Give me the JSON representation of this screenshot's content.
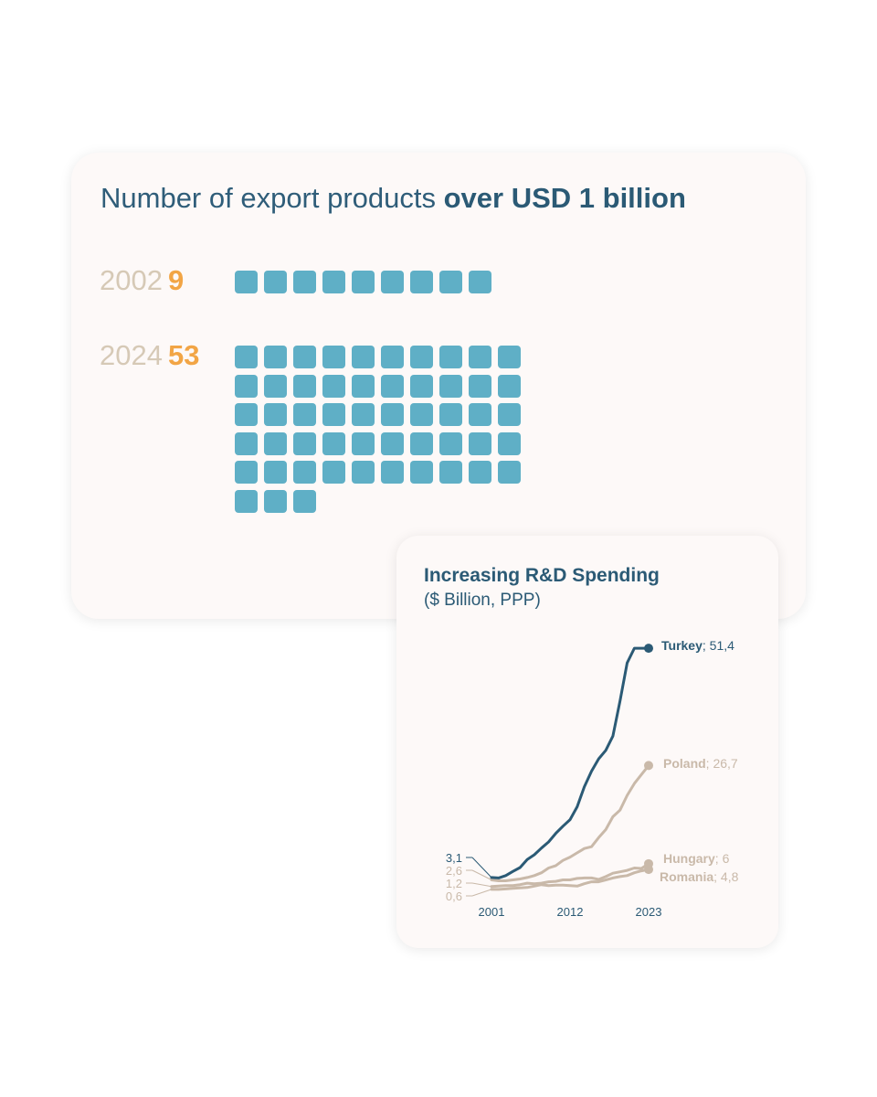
{
  "chart_data": [
    {
      "type": "pictogram",
      "title_regular": "Number of export products ",
      "title_bold": "over USD 1 billion",
      "rows": [
        {
          "year": "2002",
          "value": 9
        },
        {
          "year": "2024",
          "value": 53
        }
      ],
      "colors": {
        "square": "#5fafc6",
        "year": "#d6c9b6",
        "value": "#f2a545",
        "title": "#2f5d79"
      }
    },
    {
      "type": "line",
      "title": "Increasing R&D Spending",
      "subtitle": "($ Billion, PPP)",
      "x_ticks": [
        "2001",
        "2012",
        "2023"
      ],
      "xlim": [
        2001,
        2023
      ],
      "ylim": [
        0,
        52
      ],
      "start_labels": [
        "3,1",
        "2,6",
        "1,2",
        "0,6"
      ],
      "series": [
        {
          "name": "Turkey",
          "end_label": "51,4",
          "color": "#2b5a75",
          "x": [
            2001,
            2002,
            2003,
            2004,
            2005,
            2006,
            2007,
            2008,
            2009,
            2010,
            2011,
            2012,
            2013,
            2014,
            2015,
            2016,
            2017,
            2018,
            2019,
            2020,
            2021,
            2022,
            2023
          ],
          "y": [
            3.1,
            3.0,
            3.5,
            4.4,
            5.2,
            6.9,
            7.9,
            9.3,
            10.6,
            12.4,
            13.9,
            15.3,
            18.0,
            22.2,
            25.5,
            28.1,
            29.9,
            32.9,
            40.3,
            48.3,
            51.4,
            51.4,
            51.4
          ]
        },
        {
          "name": "Poland",
          "end_label": "26,7",
          "color": "#c9b9a9",
          "x": [
            2001,
            2002,
            2003,
            2004,
            2005,
            2006,
            2007,
            2008,
            2009,
            2010,
            2011,
            2012,
            2013,
            2014,
            2015,
            2016,
            2017,
            2018,
            2019,
            2020,
            2021,
            2022,
            2023
          ],
          "y": [
            2.6,
            2.4,
            2.4,
            2.6,
            2.8,
            3.1,
            3.5,
            4.1,
            5.1,
            5.6,
            6.7,
            7.4,
            8.3,
            9.2,
            9.6,
            11.5,
            13.2,
            15.9,
            17.3,
            20.4,
            22.9,
            24.8,
            26.7
          ]
        },
        {
          "name": "Hungary",
          "end_label": "6",
          "color": "#c9b9a9",
          "x": [
            2001,
            2002,
            2003,
            2004,
            2005,
            2006,
            2007,
            2008,
            2009,
            2010,
            2011,
            2012,
            2013,
            2014,
            2015,
            2016,
            2017,
            2018,
            2019,
            2020,
            2021,
            2022,
            2023
          ],
          "y": [
            1.2,
            1.3,
            1.4,
            1.4,
            1.6,
            1.9,
            1.8,
            1.9,
            2.2,
            2.3,
            2.6,
            2.6,
            2.9,
            3.0,
            3.0,
            2.7,
            3.3,
            4.0,
            4.3,
            4.6,
            5.1,
            5.0,
            6.0
          ]
        },
        {
          "name": "Romania",
          "end_label": "4,8",
          "color": "#c9b9a9",
          "x": [
            2001,
            2002,
            2003,
            2004,
            2005,
            2006,
            2007,
            2008,
            2009,
            2010,
            2011,
            2012,
            2013,
            2014,
            2015,
            2016,
            2017,
            2018,
            2019,
            2020,
            2021,
            2022,
            2023
          ],
          "y": [
            0.6,
            0.6,
            0.7,
            0.8,
            0.9,
            1.0,
            1.3,
            1.6,
            1.4,
            1.5,
            1.5,
            1.4,
            1.3,
            1.8,
            2.2,
            2.2,
            2.6,
            3.0,
            3.3,
            3.5,
            4.1,
            4.5,
            4.8
          ]
        }
      ]
    }
  ]
}
